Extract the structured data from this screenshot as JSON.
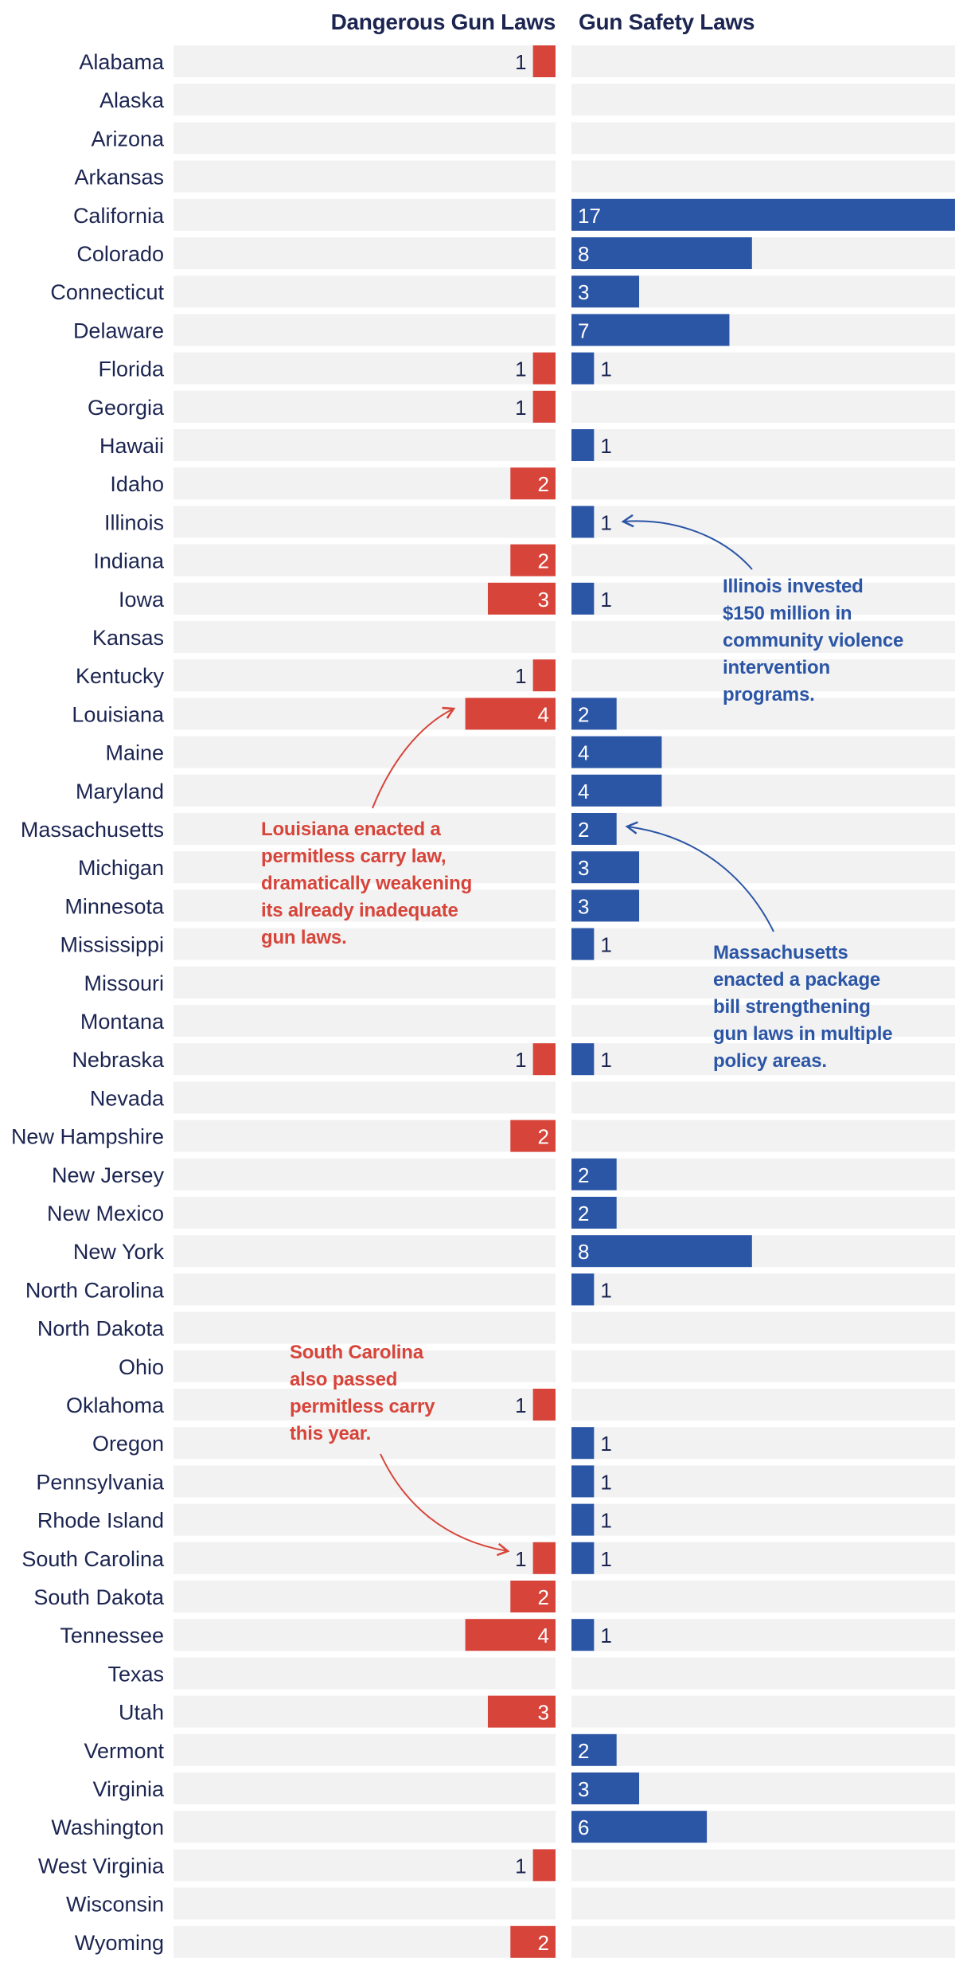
{
  "colors": {
    "dangerous": "#d7443a",
    "safety": "#2b55a5",
    "row_background": "#f2f2f2",
    "state_label": "#1c2551",
    "bar_label_inside": "#ffffff",
    "bar_label_outside": "#1c2551"
  },
  "headers": {
    "dangerous": "Dangerous Gun Laws",
    "safety": "Gun Safety Laws"
  },
  "chart_data": {
    "type": "bar",
    "orientation": "horizontal",
    "layout": "diverging-back-to-back",
    "categories": [
      "Alabama",
      "Alaska",
      "Arizona",
      "Arkansas",
      "California",
      "Colorado",
      "Connecticut",
      "Delaware",
      "Florida",
      "Georgia",
      "Hawaii",
      "Idaho",
      "Illinois",
      "Indiana",
      "Iowa",
      "Kansas",
      "Kentucky",
      "Louisiana",
      "Maine",
      "Maryland",
      "Massachusetts",
      "Michigan",
      "Minnesota",
      "Mississippi",
      "Missouri",
      "Montana",
      "Nebraska",
      "Nevada",
      "New Hampshire",
      "New Jersey",
      "New Mexico",
      "New York",
      "North Carolina",
      "North Dakota",
      "Ohio",
      "Oklahoma",
      "Oregon",
      "Pennsylvania",
      "Rhode Island",
      "South Carolina",
      "South Dakota",
      "Tennessee",
      "Texas",
      "Utah",
      "Vermont",
      "Virginia",
      "Washington",
      "West Virginia",
      "Wisconsin",
      "Wyoming"
    ],
    "series": [
      {
        "name": "Dangerous Gun Laws",
        "values": [
          1,
          0,
          0,
          0,
          0,
          0,
          0,
          0,
          1,
          1,
          0,
          2,
          0,
          2,
          3,
          0,
          1,
          4,
          0,
          0,
          0,
          0,
          0,
          0,
          0,
          0,
          1,
          0,
          2,
          0,
          0,
          0,
          0,
          0,
          0,
          1,
          0,
          0,
          0,
          1,
          2,
          4,
          0,
          3,
          0,
          0,
          0,
          1,
          0,
          2
        ]
      },
      {
        "name": "Gun Safety Laws",
        "values": [
          0,
          0,
          0,
          0,
          17,
          8,
          3,
          7,
          1,
          0,
          1,
          0,
          1,
          0,
          1,
          0,
          0,
          2,
          4,
          4,
          2,
          3,
          3,
          1,
          0,
          0,
          1,
          0,
          0,
          2,
          2,
          8,
          1,
          0,
          0,
          0,
          1,
          1,
          1,
          1,
          0,
          1,
          0,
          0,
          2,
          3,
          6,
          0,
          0,
          0
        ]
      }
    ],
    "annotations": [
      {
        "id": "illinois",
        "series": "Gun Safety Laws",
        "target": "Illinois",
        "lines": [
          "Illinois invested",
          "$150 million in",
          "community violence",
          "intervention",
          "programs."
        ]
      },
      {
        "id": "louisiana",
        "series": "Dangerous Gun Laws",
        "target": "Louisiana",
        "lines": [
          "Louisiana enacted a",
          "permitless carry law,",
          "dramatically weakening",
          "its already inadequate",
          "gun laws."
        ]
      },
      {
        "id": "massachusetts",
        "series": "Gun Safety Laws",
        "target": "Massachusetts",
        "lines": [
          "Massachusetts",
          "enacted a package",
          "bill strengthening",
          "gun laws in multiple",
          "policy areas."
        ]
      },
      {
        "id": "south-carolina",
        "series": "Dangerous Gun Laws",
        "target": "South Carolina",
        "lines": [
          "South Carolina",
          "also passed",
          "permitless carry",
          "this year."
        ]
      }
    ]
  }
}
